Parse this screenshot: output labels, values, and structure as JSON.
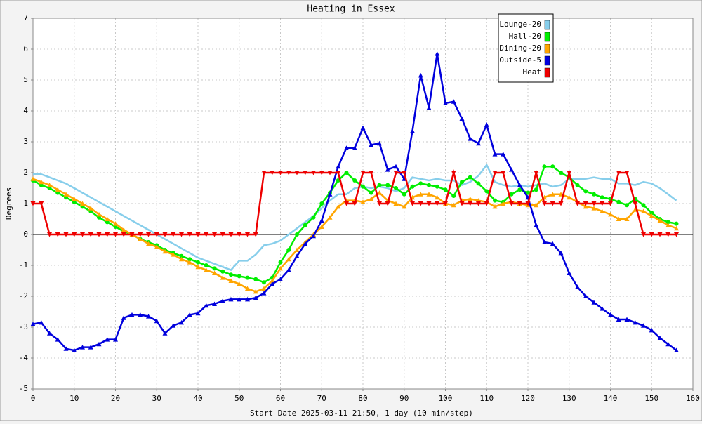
{
  "chart_data": {
    "type": "line",
    "title": "Heating in Essex",
    "ylabel": "Degrees",
    "xlabel": "Start Date 2025-03-11 21:50, 1 day (10 min/step)",
    "xlim": [
      0,
      160
    ],
    "xticks": [
      0,
      10,
      20,
      30,
      40,
      50,
      60,
      70,
      80,
      90,
      100,
      110,
      120,
      130,
      140,
      150,
      160
    ],
    "ylim": [
      -5,
      7
    ],
    "yticks": [
      -5,
      -4,
      -3,
      -2,
      -1,
      0,
      1,
      2,
      3,
      4,
      5,
      6,
      7
    ],
    "grid": true,
    "legend": "top-right",
    "x": [
      0,
      2,
      4,
      6,
      8,
      10,
      12,
      14,
      16,
      18,
      20,
      22,
      24,
      26,
      28,
      30,
      32,
      34,
      36,
      38,
      40,
      42,
      44,
      46,
      48,
      50,
      52,
      54,
      56,
      58,
      60,
      62,
      64,
      66,
      68,
      70,
      72,
      74,
      76,
      78,
      80,
      82,
      84,
      86,
      88,
      90,
      92,
      94,
      96,
      98,
      100,
      102,
      104,
      106,
      108,
      110,
      112,
      114,
      116,
      118,
      120,
      122,
      124,
      126,
      128,
      130,
      132,
      134,
      136,
      138,
      140,
      142,
      144,
      146,
      148,
      150,
      152,
      154,
      156
    ],
    "series": [
      {
        "name": "Lounge-20",
        "color": "#87ceeb",
        "marker": "none",
        "values": [
          1.95,
          1.95,
          1.85,
          1.75,
          1.65,
          1.5,
          1.35,
          1.2,
          1.05,
          0.9,
          0.75,
          0.6,
          0.45,
          0.3,
          0.15,
          0,
          -0.15,
          -0.3,
          -0.45,
          -0.6,
          -0.75,
          -0.85,
          -0.95,
          -1.05,
          -1.15,
          -0.85,
          -0.85,
          -0.65,
          -0.35,
          -0.3,
          -0.2,
          0,
          0.2,
          0.4,
          0.6,
          0.85,
          1.1,
          1.3,
          1.3,
          1.5,
          1.55,
          1.5,
          1.55,
          1.5,
          1.4,
          1.5,
          1.85,
          1.8,
          1.75,
          1.8,
          1.75,
          1.75,
          1.6,
          1.7,
          1.9,
          2.25,
          1.7,
          1.6,
          1.55,
          1.6,
          1.55,
          1.6,
          1.65,
          1.55,
          1.6,
          1.8,
          1.8,
          1.8,
          1.85,
          1.8,
          1.8,
          1.65,
          1.65,
          1.6,
          1.7,
          1.65,
          1.5,
          1.3,
          1.1
        ]
      },
      {
        "name": "Hall-20",
        "color": "#00ee00",
        "marker": "circle",
        "values": [
          1.75,
          1.6,
          1.5,
          1.35,
          1.2,
          1.05,
          0.9,
          0.75,
          0.55,
          0.4,
          0.25,
          0.1,
          0,
          -0.15,
          -0.25,
          -0.35,
          -0.5,
          -0.6,
          -0.7,
          -0.8,
          -0.9,
          -1.0,
          -1.1,
          -1.2,
          -1.3,
          -1.35,
          -1.4,
          -1.45,
          -1.55,
          -1.4,
          -0.9,
          -0.5,
          0,
          0.3,
          0.55,
          1.0,
          1.35,
          1.75,
          2.0,
          1.75,
          1.55,
          1.35,
          1.6,
          1.6,
          1.5,
          1.3,
          1.55,
          1.65,
          1.6,
          1.55,
          1.45,
          1.25,
          1.7,
          1.85,
          1.65,
          1.4,
          1.1,
          1.05,
          1.3,
          1.45,
          1.35,
          1.45,
          2.2,
          2.2,
          2.0,
          1.85,
          1.6,
          1.4,
          1.3,
          1.2,
          1.15,
          1.05,
          0.95,
          1.15,
          0.95,
          0.7,
          0.5,
          0.4,
          0.35
        ]
      },
      {
        "name": "Dining-20",
        "color": "#ffa500",
        "marker": "triangle",
        "values": [
          1.8,
          1.7,
          1.6,
          1.45,
          1.3,
          1.15,
          1.0,
          0.85,
          0.65,
          0.5,
          0.35,
          0.15,
          0,
          -0.15,
          -0.3,
          -0.4,
          -0.55,
          -0.65,
          -0.8,
          -0.9,
          -1.05,
          -1.15,
          -1.25,
          -1.4,
          -1.5,
          -1.6,
          -1.75,
          -1.85,
          -1.75,
          -1.5,
          -1.1,
          -0.8,
          -0.5,
          -0.25,
          0,
          0.25,
          0.55,
          0.9,
          1.1,
          1.1,
          1.05,
          1.15,
          1.35,
          1.1,
          1.0,
          0.9,
          1.2,
          1.3,
          1.3,
          1.2,
          1.0,
          0.95,
          1.1,
          1.15,
          1.1,
          1.05,
          0.9,
          1.0,
          1.05,
          1.0,
          0.95,
          0.95,
          1.2,
          1.3,
          1.3,
          1.2,
          1.05,
          0.9,
          0.85,
          0.75,
          0.65,
          0.5,
          0.5,
          0.8,
          0.75,
          0.6,
          0.45,
          0.3,
          0.2
        ]
      },
      {
        "name": "Outside-5",
        "color": "#0000dd",
        "marker": "triangle",
        "values": [
          -2.9,
          -2.85,
          -3.2,
          -3.4,
          -3.7,
          -3.75,
          -3.65,
          -3.65,
          -3.55,
          -3.4,
          -3.4,
          -2.7,
          -2.6,
          -2.6,
          -2.65,
          -2.8,
          -3.2,
          -2.95,
          -2.85,
          -2.6,
          -2.55,
          -2.3,
          -2.25,
          -2.15,
          -2.1,
          -2.1,
          -2.1,
          -2.05,
          -1.9,
          -1.6,
          -1.45,
          -1.15,
          -0.7,
          -0.3,
          -0.05,
          0.45,
          1.3,
          2.2,
          2.8,
          2.8,
          3.45,
          2.9,
          2.95,
          2.1,
          2.2,
          1.8,
          3.35,
          5.15,
          4.1,
          5.85,
          4.25,
          4.3,
          3.75,
          3.1,
          2.95,
          3.55,
          2.6,
          2.6,
          2.1,
          1.6,
          1.2,
          0.3,
          -0.25,
          -0.3,
          -0.6,
          -1.25,
          -1.7,
          -2.0,
          -2.2,
          -2.4,
          -2.6,
          -2.75,
          -2.75,
          -2.85,
          -2.95,
          -3.1,
          -3.35,
          -3.55,
          -3.75
        ]
      },
      {
        "name": "Heat",
        "color": "#ee0000",
        "marker": "down-triangle",
        "values": [
          1,
          1,
          0,
          0,
          0,
          0,
          0,
          0,
          0,
          0,
          0,
          0,
          0,
          0,
          0,
          0,
          0,
          0,
          0,
          0,
          0,
          0,
          0,
          0,
          0,
          0,
          0,
          0,
          2,
          2,
          2,
          2,
          2,
          2,
          2,
          2,
          2,
          2,
          1,
          1,
          2,
          2,
          1,
          1,
          2,
          2,
          1,
          1,
          1,
          1,
          1,
          2,
          1,
          1,
          1,
          1,
          2,
          2,
          1,
          1,
          1,
          2,
          1,
          1,
          1,
          2,
          1,
          1,
          1,
          1,
          1,
          2,
          2,
          1,
          0,
          0,
          0,
          0,
          0
        ]
      }
    ]
  }
}
